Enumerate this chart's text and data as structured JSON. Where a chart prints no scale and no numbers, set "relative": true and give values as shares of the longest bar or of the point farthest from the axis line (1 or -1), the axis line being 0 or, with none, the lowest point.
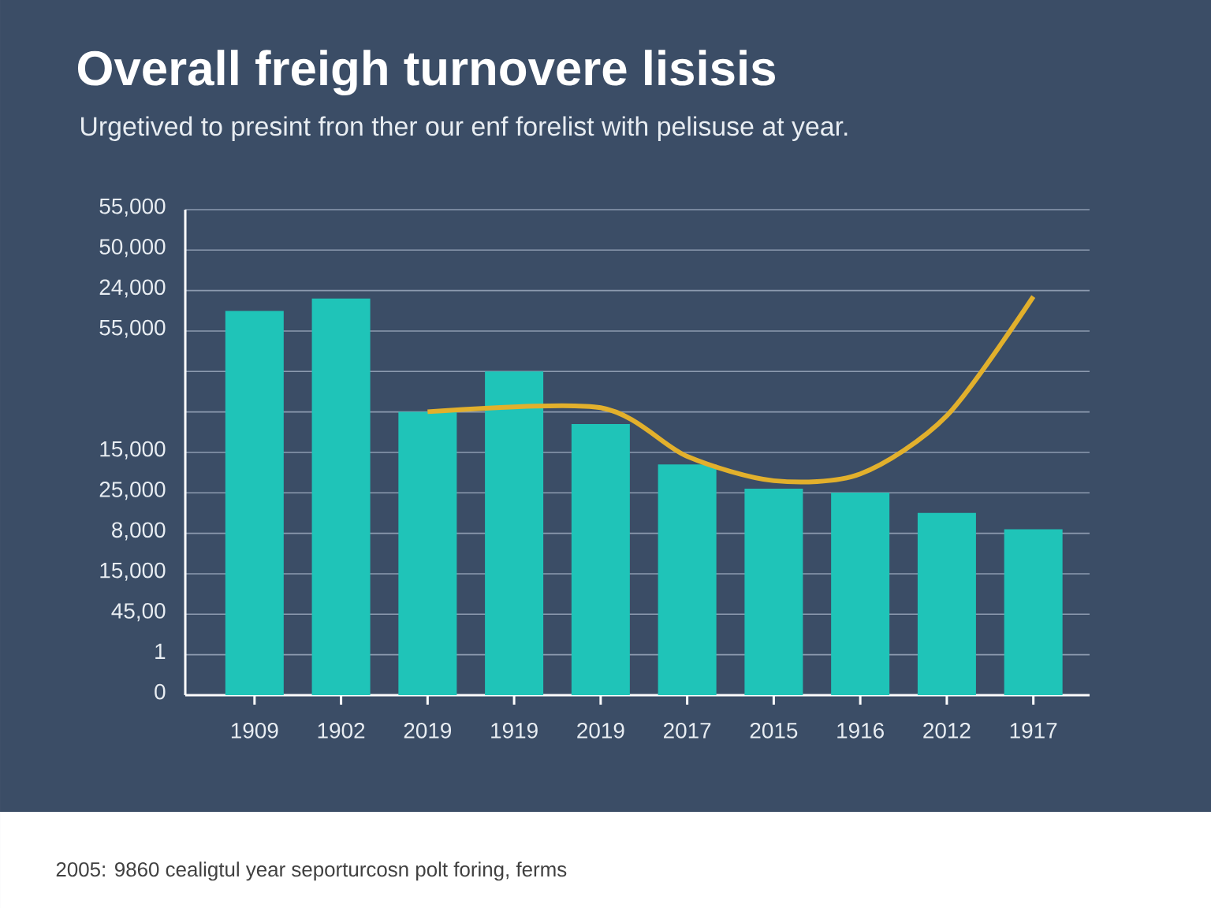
{
  "chart_data": {
    "type": "bar",
    "title": "Overall freigh turnovere lisisis",
    "subtitle": "Urgetived to presint fron ther our enf forelist with pelisuse at year.",
    "categories": [
      "1909",
      "1902",
      "2019",
      "1919",
      "2019",
      "2017",
      "2015",
      "1916",
      "2012",
      "1917"
    ],
    "relative": true,
    "series": [
      {
        "color": "#1fc4b8",
        "values": [
          0.964,
          0.995,
          0.711,
          0.812,
          0.68,
          0.579,
          0.518,
          0.508,
          0.457,
          0.416
        ]
      },
      {
        "type": "line",
        "color": "#e2b02c",
        "values": [
          null,
          null,
          0.711,
          null,
          0.721,
          0.599,
          0.538,
          0.555,
          0.701,
          1
        ]
      }
    ],
    "grid": "y",
    "annotations": [
      "2005: 9860 cealigtul year seporturcosn polt foring, ferms",
      "0",
      "1",
      "45,00",
      "15,000",
      "8,000",
      "25,000",
      "15,000",
      "55,000",
      "24,000",
      "50,000",
      "55,000"
    ]
  }
}
